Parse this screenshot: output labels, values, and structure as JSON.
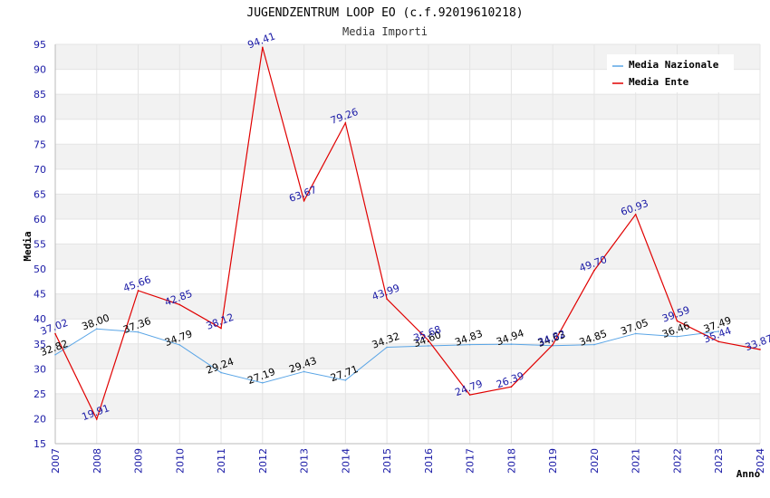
{
  "chart_data": {
    "type": "line",
    "title": "JUGENDZENTRUM LOOP EO (c.f.92019610218)",
    "subtitle": "Media Importi",
    "xlabel": "Anno",
    "ylabel": "Media",
    "ylim": [
      15,
      95
    ],
    "ytick_step": 5,
    "categories": [
      "2007",
      "2008",
      "2009",
      "2010",
      "2011",
      "2012",
      "2013",
      "2014",
      "2015",
      "2016",
      "2017",
      "2018",
      "2019",
      "2020",
      "2021",
      "2022",
      "2023",
      "2024"
    ],
    "series": [
      {
        "name": "Media Nazionale",
        "color": "#5aa5e6",
        "labels": [
          "32.82",
          "38.00",
          "37.36",
          "34.79",
          "29.24",
          "27.19",
          "29.43",
          "27.71",
          "34.32",
          "34.60",
          "34.83",
          "34.94",
          "34.63",
          "34.85",
          "37.05",
          "36.46",
          "37.49",
          ""
        ],
        "values": [
          32.82,
          38.0,
          37.36,
          34.79,
          29.24,
          27.19,
          29.43,
          27.71,
          34.32,
          34.6,
          34.83,
          34.94,
          34.63,
          34.85,
          37.05,
          36.46,
          37.49,
          null
        ]
      },
      {
        "name": "Media Ente",
        "color": "#e00000",
        "labels": [
          "37.02",
          "19.91",
          "45.66",
          "42.85",
          "38.12",
          "94.41",
          "63.67",
          "79.26",
          "43.99",
          "35.68",
          "24.79",
          "26.39",
          "34.82",
          "49.70",
          "60.93",
          "39.59",
          "35.44",
          "33.87"
        ],
        "values": [
          37.02,
          19.91,
          45.66,
          42.85,
          38.12,
          94.41,
          63.67,
          79.26,
          43.99,
          35.68,
          24.79,
          26.39,
          34.82,
          49.7,
          60.93,
          39.59,
          35.44,
          33.87
        ]
      }
    ],
    "legend_position": "top-right"
  }
}
